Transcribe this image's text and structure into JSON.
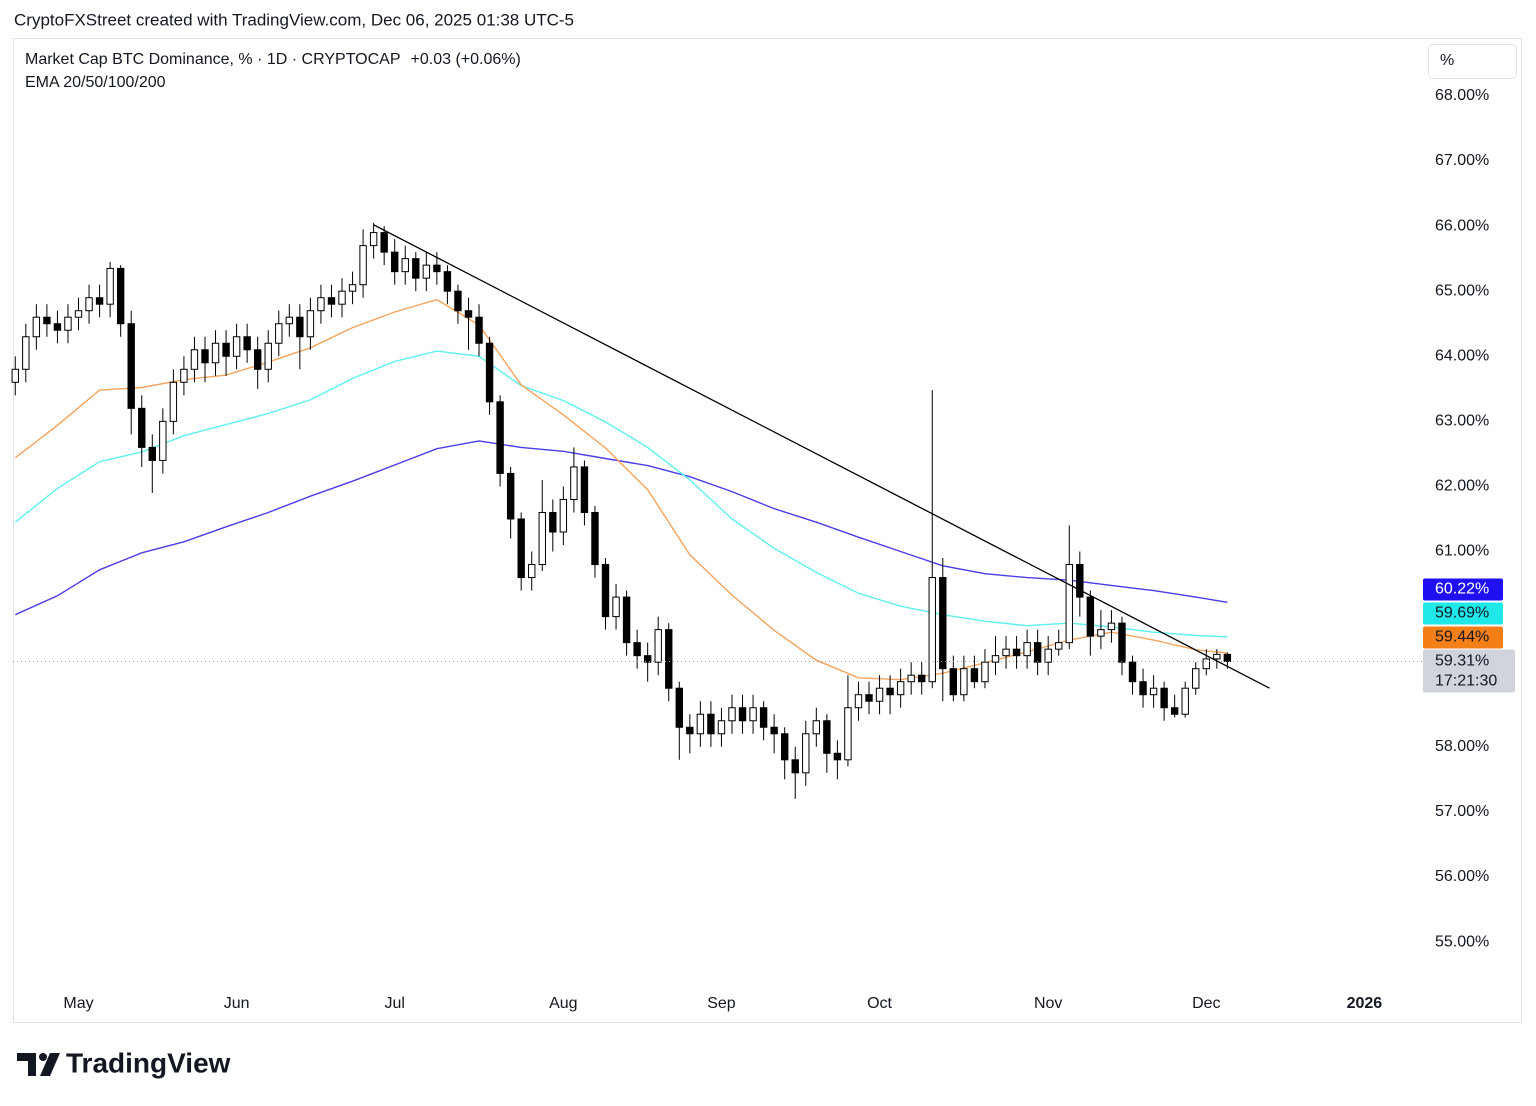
{
  "header": "CryptoFXStreet created with TradingView.com, Dec 06, 2025 01:38 UTC-5",
  "logo": "TradingView",
  "chart_data": {
    "type": "candlestick",
    "title": "Market Cap BTC Dominance, % · 1D · CRYPTOCAP",
    "change": "+0.03 (+0.06%)",
    "subtitle": "EMA 20/50/100/200",
    "scale_button": "%",
    "categories": [
      null,
      null,
      null,
      null,
      null,
      null,
      "May",
      null,
      null,
      null,
      null,
      null,
      null,
      null,
      null,
      null,
      null,
      null,
      null,
      null,
      null,
      "Jun",
      null,
      null,
      null,
      null,
      null,
      null,
      null,
      null,
      null,
      null,
      null,
      null,
      null,
      null,
      "Jul",
      null,
      null,
      null,
      null,
      null,
      null,
      null,
      null,
      null,
      null,
      null,
      null,
      null,
      null,
      null,
      "Aug",
      null,
      null,
      null,
      null,
      null,
      null,
      null,
      null,
      null,
      null,
      null,
      null,
      null,
      null,
      "Sep",
      null,
      null,
      null,
      null,
      null,
      null,
      null,
      null,
      null,
      null,
      null,
      null,
      null,
      null,
      "Oct",
      null,
      null,
      null,
      null,
      null,
      null,
      null,
      null,
      null,
      null,
      null,
      null,
      null,
      null,
      null,
      "Nov",
      null,
      null,
      null,
      null,
      null,
      null,
      null,
      null,
      null,
      null,
      null,
      null,
      null,
      null,
      "Dec",
      null,
      null,
      null,
      null,
      null,
      null,
      null,
      null,
      null,
      null,
      null,
      null,
      null,
      null,
      "2026",
      null,
      null,
      null,
      null,
      null
    ],
    "open": [
      63.6,
      63.8,
      64.3,
      64.6,
      64.5,
      64.4,
      64.6,
      64.7,
      64.9,
      64.8,
      65.35,
      64.5,
      63.2,
      62.6,
      62.4,
      63.0,
      63.6,
      63.8,
      64.1,
      63.9,
      64.2,
      64.0,
      64.3,
      64.1,
      63.8,
      64.2,
      64.5,
      64.6,
      64.3,
      64.7,
      64.9,
      64.8,
      65.0,
      65.1,
      65.7,
      65.9,
      65.6,
      65.3,
      65.5,
      65.2,
      65.4,
      65.3,
      65.0,
      64.7,
      64.6,
      64.2,
      63.3,
      62.2,
      61.5,
      60.6,
      60.8,
      61.6,
      61.3,
      61.8,
      62.3,
      61.6,
      60.8,
      60.0,
      60.3,
      59.6,
      59.4,
      59.3,
      59.8,
      58.9,
      58.3,
      58.2,
      58.5,
      58.2,
      58.4,
      58.6,
      58.4,
      58.6,
      58.3,
      58.2,
      57.8,
      57.6,
      58.2,
      58.4,
      57.9,
      57.8,
      58.6,
      58.8,
      58.7,
      58.9,
      58.8,
      59.0,
      59.1,
      59.0,
      60.6,
      59.2,
      58.8,
      59.2,
      59.0,
      59.3,
      59.4,
      59.5,
      59.4,
      59.6,
      59.3,
      59.5,
      59.6,
      60.8,
      60.3,
      59.7,
      59.8,
      59.9,
      59.3,
      59.0,
      58.8,
      58.9,
      58.6,
      58.5,
      58.9,
      59.2,
      59.35,
      59.42,
      null,
      null,
      null,
      null,
      null,
      null,
      null,
      null,
      null,
      null,
      null,
      null,
      null,
      null,
      null,
      null,
      null,
      null
    ],
    "high": [
      64.0,
      64.5,
      64.8,
      64.8,
      64.7,
      64.8,
      64.9,
      65.1,
      65.1,
      65.45,
      65.4,
      64.7,
      63.4,
      62.8,
      63.2,
      63.8,
      64.0,
      64.3,
      64.3,
      64.4,
      64.4,
      64.5,
      64.5,
      64.3,
      64.4,
      64.7,
      64.8,
      64.8,
      64.9,
      65.1,
      65.1,
      65.2,
      65.3,
      65.95,
      66.05,
      66.0,
      65.8,
      65.7,
      65.6,
      65.6,
      65.6,
      65.4,
      65.1,
      64.9,
      64.8,
      64.3,
      63.4,
      62.3,
      61.6,
      61.0,
      62.1,
      61.8,
      62.0,
      62.6,
      62.4,
      61.7,
      60.9,
      60.5,
      60.4,
      59.8,
      59.6,
      60.0,
      59.9,
      59.0,
      58.5,
      58.7,
      58.7,
      58.6,
      58.8,
      58.8,
      58.8,
      58.7,
      58.5,
      58.3,
      58.0,
      58.4,
      58.6,
      58.5,
      58.1,
      59.1,
      59.0,
      59.0,
      59.1,
      59.1,
      59.2,
      59.3,
      59.3,
      63.48,
      60.9,
      59.4,
      59.4,
      59.4,
      59.5,
      59.7,
      59.7,
      59.7,
      59.8,
      59.8,
      59.7,
      59.8,
      61.4,
      61.0,
      60.4,
      60.1,
      60.1,
      60.0,
      59.4,
      59.2,
      59.1,
      59.0,
      58.8,
      59.0,
      59.3,
      59.5,
      59.5,
      59.45,
      null,
      null,
      null,
      null,
      null,
      null,
      null,
      null,
      null,
      null,
      null,
      null,
      null,
      null,
      null,
      null,
      null,
      null
    ],
    "low": [
      63.4,
      63.6,
      64.1,
      64.3,
      64.2,
      64.2,
      64.4,
      64.5,
      64.6,
      64.6,
      64.3,
      62.8,
      62.3,
      61.9,
      62.2,
      62.8,
      63.4,
      63.6,
      63.6,
      63.7,
      63.7,
      63.8,
      63.9,
      63.5,
      63.6,
      64.0,
      64.3,
      63.8,
      64.1,
      64.5,
      64.6,
      64.6,
      64.8,
      64.9,
      65.5,
      65.4,
      65.1,
      65.1,
      65.0,
      65.0,
      65.1,
      64.8,
      64.5,
      64.1,
      64.0,
      63.1,
      62.0,
      61.2,
      60.4,
      60.4,
      60.7,
      61.0,
      61.1,
      61.6,
      61.4,
      60.6,
      59.8,
      59.8,
      59.4,
      59.2,
      59.0,
      59.1,
      58.7,
      57.8,
      57.9,
      58.0,
      58.0,
      58.0,
      58.2,
      58.2,
      58.2,
      58.1,
      57.9,
      57.5,
      57.2,
      57.4,
      58.0,
      57.6,
      57.5,
      57.7,
      58.4,
      58.5,
      58.5,
      58.5,
      58.6,
      58.8,
      58.8,
      58.9,
      58.7,
      58.7,
      58.7,
      58.9,
      58.9,
      59.1,
      59.2,
      59.2,
      59.2,
      59.1,
      59.1,
      59.4,
      59.5,
      60.0,
      59.4,
      59.5,
      59.6,
      59.1,
      58.8,
      58.6,
      58.6,
      58.4,
      58.45,
      58.45,
      58.8,
      59.1,
      59.2,
      59.2,
      null,
      null,
      null,
      null,
      null,
      null,
      null,
      null,
      null,
      null,
      null,
      null,
      null,
      null,
      null,
      null,
      null,
      null
    ],
    "close": [
      63.8,
      64.3,
      64.6,
      64.5,
      64.4,
      64.6,
      64.7,
      64.9,
      64.8,
      65.35,
      64.5,
      63.2,
      62.6,
      62.4,
      63.0,
      63.6,
      63.8,
      64.1,
      63.9,
      64.2,
      64.0,
      64.3,
      64.1,
      63.8,
      64.2,
      64.5,
      64.6,
      64.3,
      64.7,
      64.9,
      64.8,
      65.0,
      65.1,
      65.7,
      65.9,
      65.6,
      65.3,
      65.5,
      65.2,
      65.4,
      65.3,
      65.0,
      64.7,
      64.6,
      64.2,
      63.3,
      62.2,
      61.5,
      60.6,
      60.8,
      61.6,
      61.3,
      61.8,
      62.3,
      61.6,
      60.8,
      60.0,
      60.3,
      59.6,
      59.4,
      59.3,
      59.8,
      58.9,
      58.3,
      58.2,
      58.5,
      58.2,
      58.4,
      58.6,
      58.4,
      58.6,
      58.3,
      58.2,
      57.8,
      57.6,
      58.2,
      58.4,
      57.9,
      57.8,
      58.6,
      58.8,
      58.7,
      58.9,
      58.8,
      59.0,
      59.1,
      59.0,
      60.6,
      59.2,
      58.8,
      59.2,
      59.0,
      59.3,
      59.4,
      59.5,
      59.4,
      59.6,
      59.3,
      59.5,
      59.6,
      60.8,
      60.3,
      59.7,
      59.8,
      59.9,
      59.3,
      59.0,
      58.8,
      58.9,
      58.6,
      58.5,
      58.9,
      59.2,
      59.35,
      59.42,
      59.31,
      null,
      null,
      null,
      null,
      null,
      null,
      null,
      null,
      null,
      null,
      null,
      null,
      null,
      null,
      null,
      null,
      null,
      null
    ],
    "up_color": "#ffffff",
    "down_color": "#000000",
    "price_label": "59.31%",
    "countdown": "17:21:30",
    "ema_index": [
      0,
      4,
      8,
      12,
      16,
      20,
      24,
      28,
      32,
      36,
      40,
      44,
      48,
      52,
      56,
      60,
      64,
      68,
      72,
      76,
      80,
      84,
      88,
      92,
      96,
      100,
      104,
      108,
      112,
      115
    ],
    "ema": [
      {
        "color": "#4a3ee8",
        "last_label": "60.22%",
        "badge_color": "#1e10f0",
        "values": [
          60.03,
          60.32,
          60.72,
          60.98,
          61.15,
          61.38,
          61.6,
          61.85,
          62.08,
          62.33,
          62.58,
          62.7,
          62.6,
          62.54,
          62.43,
          62.32,
          62.15,
          61.92,
          61.66,
          61.45,
          61.22,
          61.0,
          60.78,
          60.66,
          60.6,
          60.56,
          60.48,
          60.4,
          60.3,
          60.22
        ]
      },
      {
        "color": "#5ef0f0",
        "last_label": "59.69%",
        "badge_color": "#1ee8e8",
        "values": [
          61.45,
          61.97,
          62.38,
          62.53,
          62.78,
          62.95,
          63.12,
          63.33,
          63.66,
          63.92,
          64.08,
          64.0,
          63.55,
          63.32,
          62.99,
          62.6,
          62.1,
          61.5,
          61.05,
          60.68,
          60.36,
          60.16,
          60.03,
          59.93,
          59.86,
          59.9,
          59.84,
          59.76,
          59.71,
          59.69
        ]
      },
      {
        "color": "#f7a35c",
        "last_label": "59.44%",
        "badge_color": "#f57f17",
        "values": [
          62.44,
          62.94,
          63.48,
          63.52,
          63.64,
          63.71,
          63.91,
          64.13,
          64.44,
          64.68,
          64.87,
          64.48,
          63.56,
          63.1,
          62.59,
          61.95,
          60.95,
          60.33,
          59.79,
          59.33,
          59.06,
          59.03,
          59.13,
          59.29,
          59.46,
          59.64,
          59.76,
          59.64,
          59.49,
          59.44
        ]
      }
    ],
    "trendline": {
      "start_index": 34,
      "start_value": 66.02,
      "end_index": 119,
      "end_value": 58.9,
      "color": "#000000"
    },
    "ylim": [
      54.34,
      68.89
    ],
    "yticks": [
      {
        "value": 55,
        "label": "55.00%"
      },
      {
        "value": 56,
        "label": "56.00%"
      },
      {
        "value": 57,
        "label": "57.00%"
      },
      {
        "value": 58,
        "label": "58.00%"
      },
      {
        "value": 59,
        "label": "59.00%"
      },
      {
        "value": 60,
        "label": "60.00%"
      },
      {
        "value": 61,
        "label": "61.00%"
      },
      {
        "value": 62,
        "label": "62.00%"
      },
      {
        "value": 63,
        "label": "63.00%"
      },
      {
        "value": 64,
        "label": "64.00%"
      },
      {
        "value": 65,
        "label": "65.00%"
      },
      {
        "value": 66,
        "label": "66.00%"
      },
      {
        "value": 67,
        "label": "67.00%"
      },
      {
        "value": 68,
        "label": "68.00%"
      }
    ],
    "grid": false
  }
}
